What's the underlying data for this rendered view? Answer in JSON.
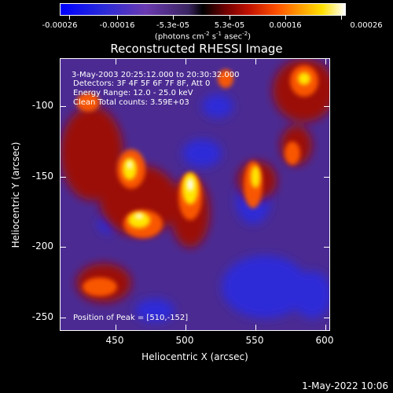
{
  "colorbar": {
    "labels": [
      "-0.00026",
      "-0.00016",
      "-5.3e-05",
      "5.3e-05",
      "0.00016",
      "0.00026"
    ],
    "units_main": "(photons cm",
    "units_exp1": "-2",
    "units_mid": " s",
    "units_exp2": "-1",
    "units_mid2": " asec",
    "units_exp3": "-2",
    "units_end": ")"
  },
  "title": "Reconstructed RHESSI Image",
  "annotations": {
    "time_range": "3-May-2003 20:25:12.000 to 20:30:32.000",
    "detectors": "Detectors: 3F 4F 5F 6F 7F 8F, Att 0",
    "energy": "Energy Range: 12.0 - 25.0 keV",
    "clean": "Clean     Total counts: 3.59E+03",
    "peak": "Position of Peak = [510,-152]"
  },
  "axes": {
    "xlabel": "Heliocentric X (arcsec)",
    "ylabel": "Heliocentric Y (arcsec)",
    "xticks": [
      "450",
      "500",
      "550",
      "600"
    ],
    "yticks": [
      "-100",
      "-150",
      "-200",
      "-250"
    ]
  },
  "timestamp": "1-May-2022 10:06"
}
